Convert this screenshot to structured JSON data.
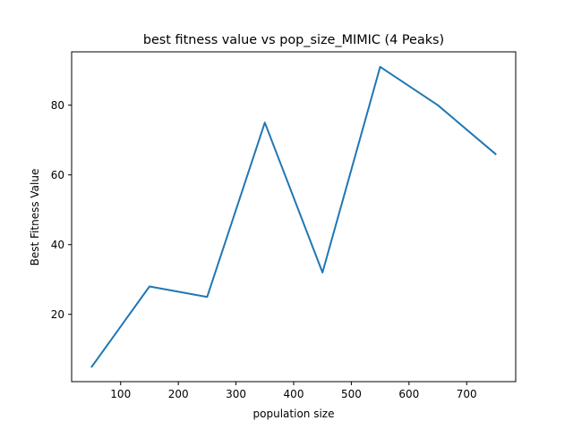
{
  "chart_data": {
    "type": "line",
    "title": "best fitness value vs pop_size_MIMIC (4 Peaks)",
    "xlabel": "population size",
    "ylabel": "Best Fitness Value",
    "xlim": [
      15,
      785
    ],
    "ylim": [
      0.7,
      95.3
    ],
    "xticks": [
      100,
      200,
      300,
      400,
      500,
      600,
      700
    ],
    "yticks": [
      20,
      40,
      60,
      80
    ],
    "grid": false,
    "series": [
      {
        "x": [
          50,
          150,
          250,
          350,
          450,
          550,
          650,
          750
        ],
        "y": [
          5,
          28,
          25,
          75,
          32,
          91,
          80,
          66
        ],
        "color": "#1f77b4"
      }
    ]
  }
}
